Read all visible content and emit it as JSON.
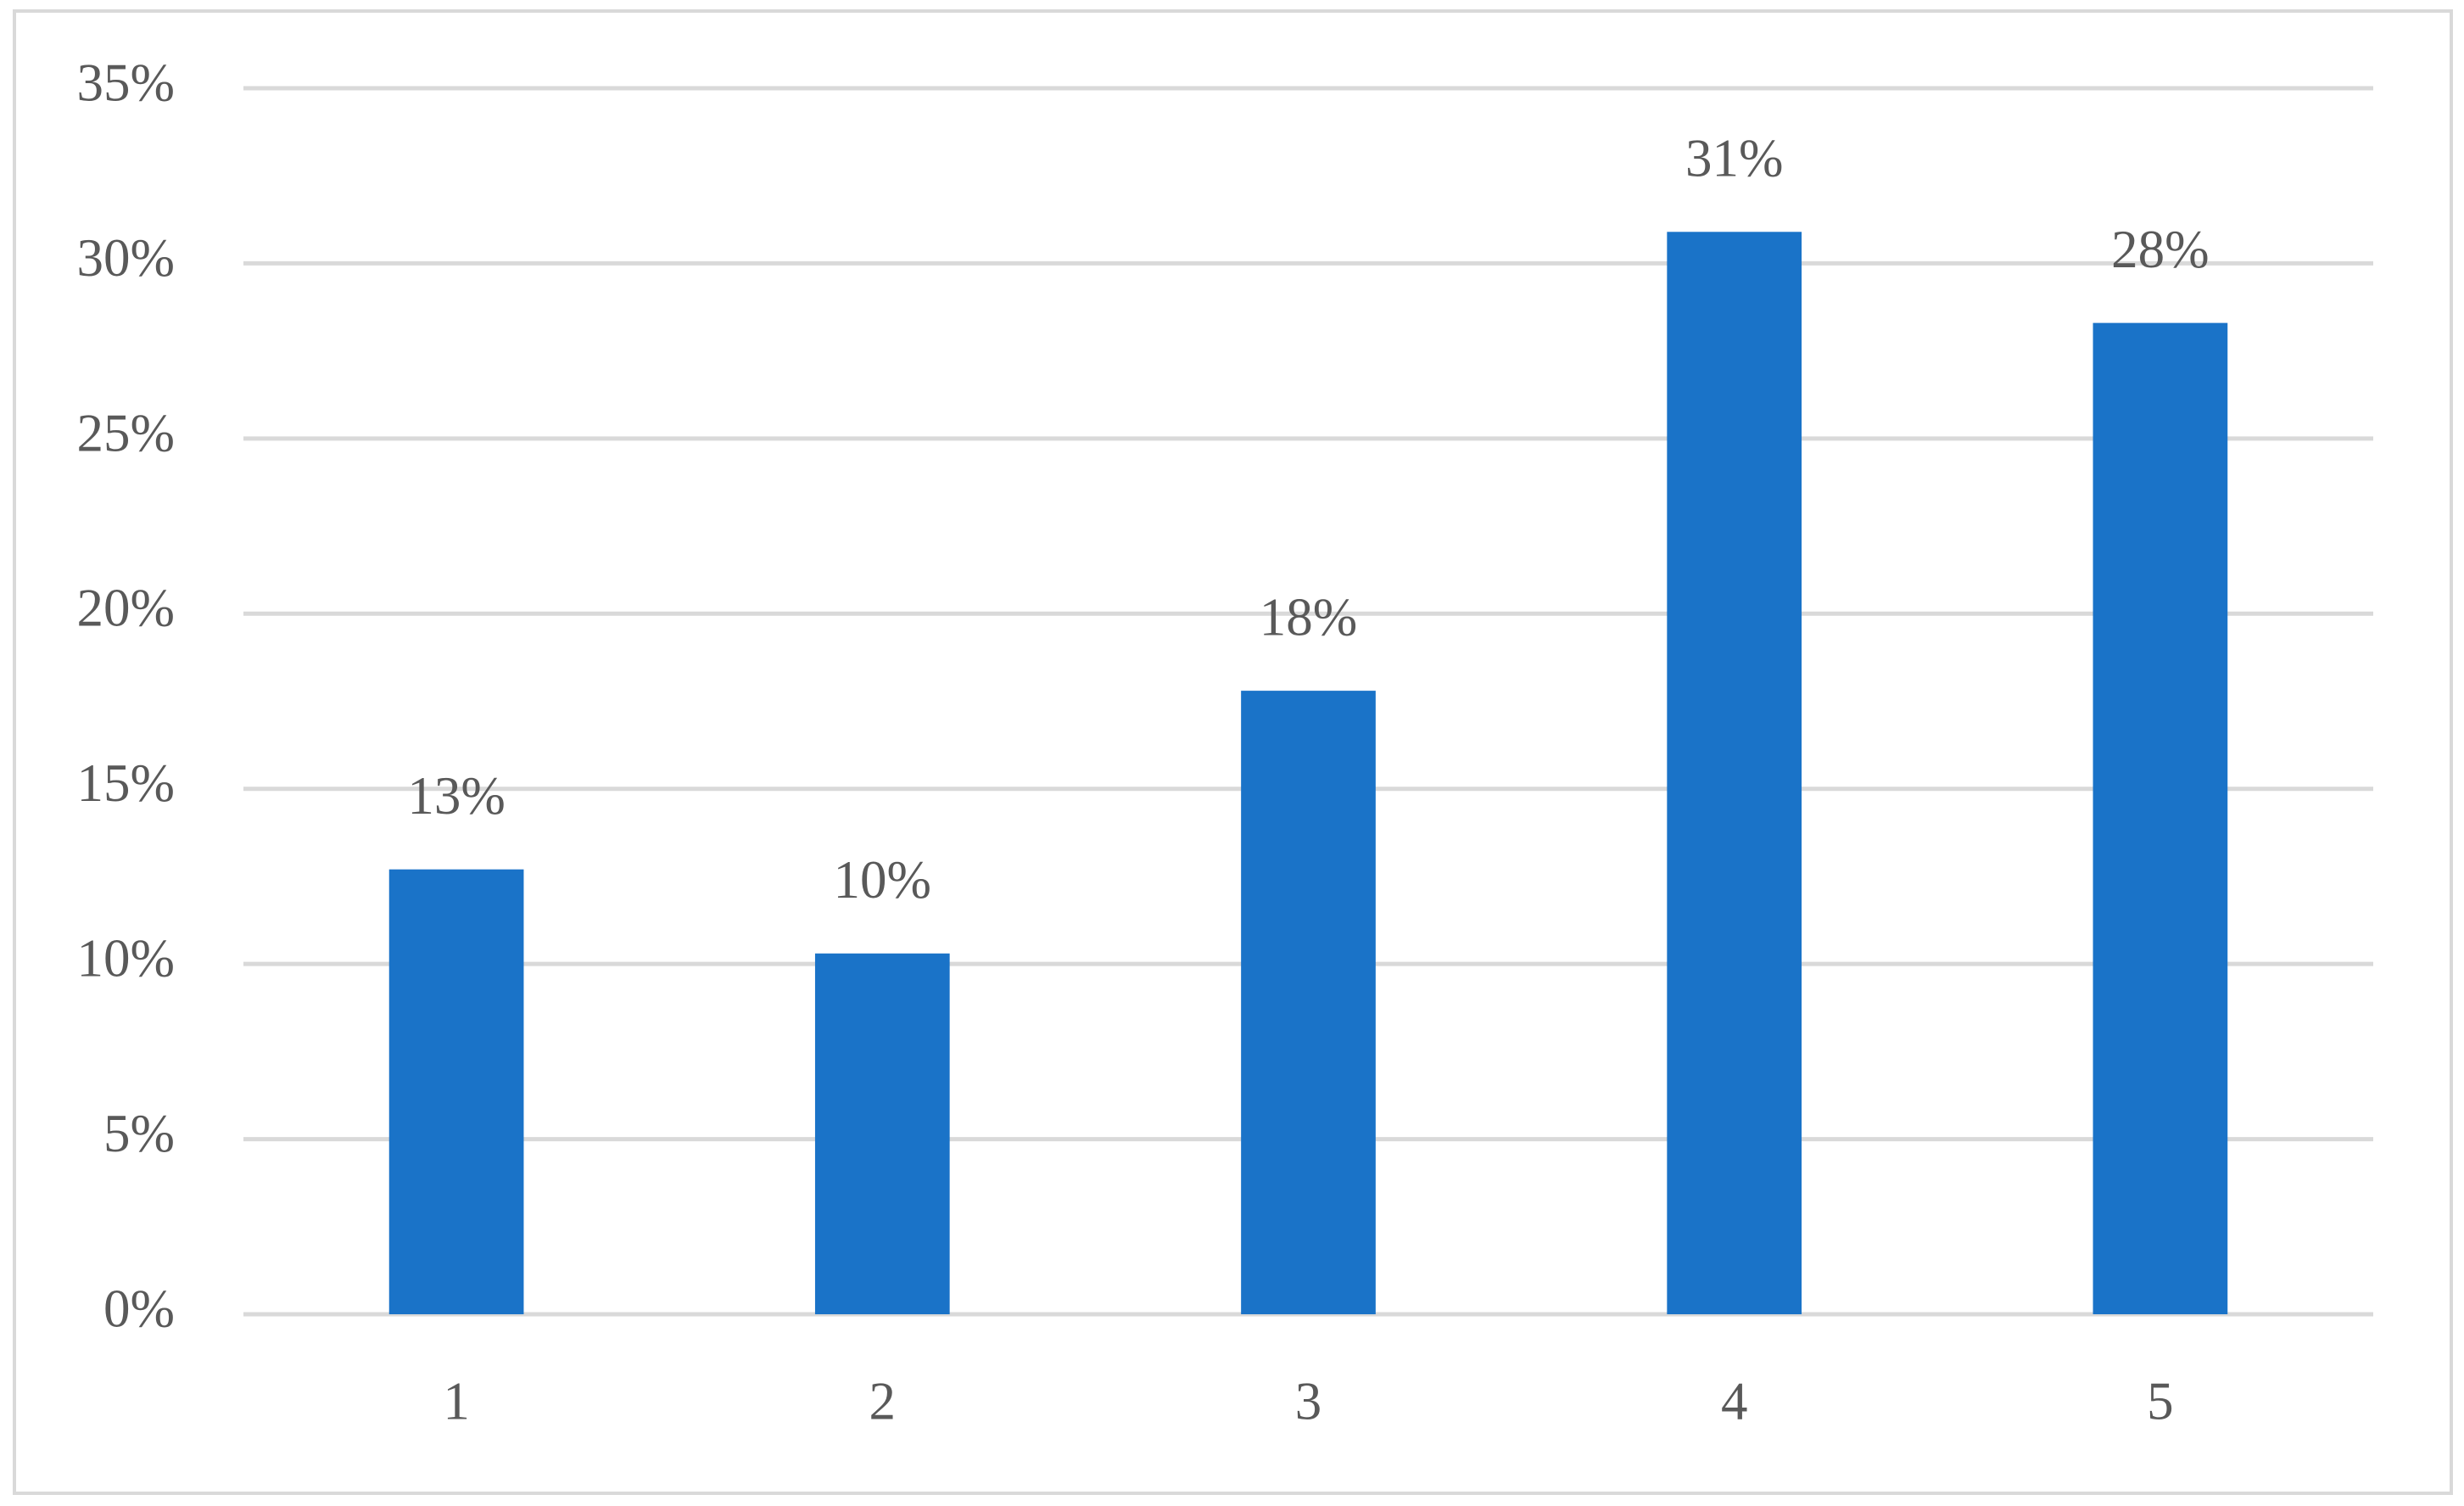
{
  "chart_data": {
    "type": "bar",
    "categories": [
      "1",
      "2",
      "3",
      "4",
      "5"
    ],
    "values": [
      12.7,
      10.3,
      17.8,
      30.9,
      28.3
    ],
    "value_labels": [
      "13%",
      "10%",
      "18%",
      "31%",
      "28%"
    ],
    "color": "#1a73c8",
    "ylim": [
      0,
      35
    ],
    "yticks": [
      {
        "value": 0,
        "label": "0%"
      },
      {
        "value": 5,
        "label": "5%"
      },
      {
        "value": 10,
        "label": "10%"
      },
      {
        "value": 15,
        "label": "15%"
      },
      {
        "value": 20,
        "label": "20%"
      },
      {
        "value": 25,
        "label": "25%"
      },
      {
        "value": 30,
        "label": "30%"
      },
      {
        "value": 35,
        "label": "35%"
      }
    ],
    "grid": true
  }
}
